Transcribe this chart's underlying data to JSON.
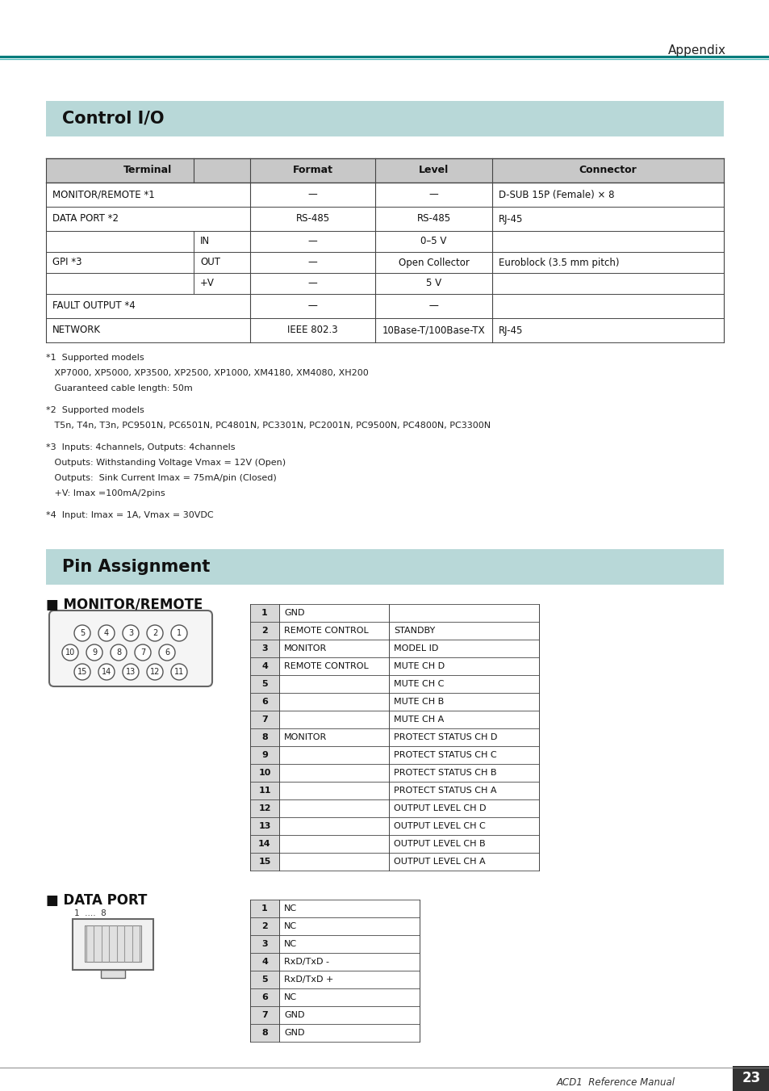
{
  "page_bg": "#ffffff",
  "teal_dark": "#007b7b",
  "teal_light": "#4db8b8",
  "appendix_text": "Appendix",
  "section_bg": "#b8d8d8",
  "section1_title": "Control I/O",
  "section2_title": "Pin Assignment",
  "subsection1_title": "■ MONITOR/REMOTE",
  "subsection2_title": "■ DATA PORT",
  "footnotes": [
    [
      "*1",
      " Supported models"
    ],
    [
      "",
      "   XP7000, XP5000, XP3500, XP2500, XP1000, XM4180, XM4080, XH200"
    ],
    [
      "",
      "   Guaranteed cable length: 50m"
    ],
    [
      "*2",
      " Supported models"
    ],
    [
      "",
      "   T5n, T4n, T3n, PC9501N, PC6501N, PC4801N, PC3301N, PC2001N, PC9500N, PC4800N, PC3300N"
    ],
    [
      "*3",
      " Inputs: 4channels, Outputs: 4channels"
    ],
    [
      "",
      "   Outputs: Withstanding Voltage Vmax = 12V (Open)"
    ],
    [
      "",
      "   Outputs:  Sink Current Imax = 75mA/pin (Closed)"
    ],
    [
      "",
      "   +V: Imax =100mA/2pins"
    ],
    [
      "*4",
      " Input: Imax = 1A, Vmax = 30VDC"
    ]
  ],
  "monitor_table": [
    [
      "1",
      "GND",
      ""
    ],
    [
      "2",
      "REMOTE CONTROL",
      "STANDBY"
    ],
    [
      "3",
      "MONITOR",
      "MODEL ID"
    ],
    [
      "4",
      "REMOTE CONTROL",
      "MUTE CH D"
    ],
    [
      "5",
      "",
      "MUTE CH C"
    ],
    [
      "6",
      "",
      "MUTE CH B"
    ],
    [
      "7",
      "",
      "MUTE CH A"
    ],
    [
      "8",
      "MONITOR",
      "PROTECT STATUS CH D"
    ],
    [
      "9",
      "",
      "PROTECT STATUS CH C"
    ],
    [
      "10",
      "",
      "PROTECT STATUS CH B"
    ],
    [
      "11",
      "",
      "PROTECT STATUS CH A"
    ],
    [
      "12",
      "",
      "OUTPUT LEVEL CH D"
    ],
    [
      "13",
      "",
      "OUTPUT LEVEL CH C"
    ],
    [
      "14",
      "",
      "OUTPUT LEVEL CH B"
    ],
    [
      "15",
      "",
      "OUTPUT LEVEL CH A"
    ]
  ],
  "dataport_table": [
    [
      "1",
      "NC"
    ],
    [
      "2",
      "NC"
    ],
    [
      "3",
      "NC"
    ],
    [
      "4",
      "RxD/TxD -"
    ],
    [
      "5",
      "RxD/TxD +"
    ],
    [
      "6",
      "NC"
    ],
    [
      "7",
      "GND"
    ],
    [
      "8",
      "GND"
    ]
  ],
  "footer_text": "ACD1  Reference Manual",
  "footer_page": "23",
  "table_header_bg": "#c8c8c8",
  "table_border": "#444444",
  "pin_col_bg": "#d8d8d8"
}
